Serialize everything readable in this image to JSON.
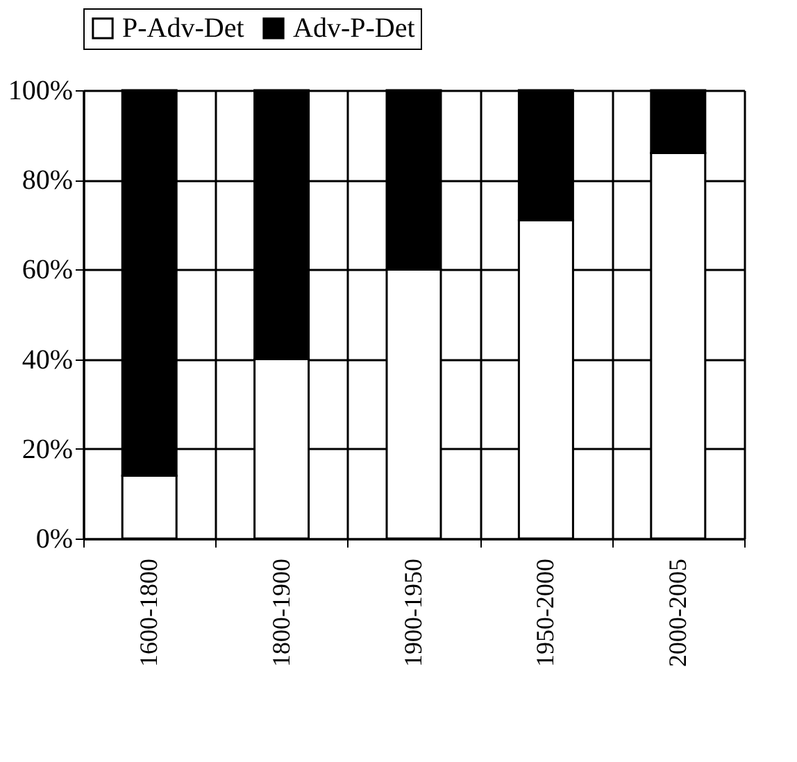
{
  "chart_data": {
    "type": "bar",
    "stacked": true,
    "categories": [
      "1600-1800",
      "1800-1900",
      "1900-1950",
      "1950-2000",
      "2000-2005"
    ],
    "series": [
      {
        "name": "P-Adv-Det",
        "color": "#ffffff",
        "values": [
          14,
          40,
          60,
          71,
          86
        ]
      },
      {
        "name": "Adv-P-Det",
        "color": "#000000",
        "values": [
          86,
          60,
          40,
          29,
          14
        ]
      }
    ],
    "ylim": [
      0,
      100
    ],
    "yticks": [
      {
        "value": 0,
        "label": "0%"
      },
      {
        "value": 20,
        "label": "20%"
      },
      {
        "value": 40,
        "label": "40%"
      },
      {
        "value": 60,
        "label": "60%"
      },
      {
        "value": 80,
        "label": "80%"
      },
      {
        "value": 100,
        "label": "100%"
      }
    ],
    "grid": true,
    "legend": "top"
  }
}
